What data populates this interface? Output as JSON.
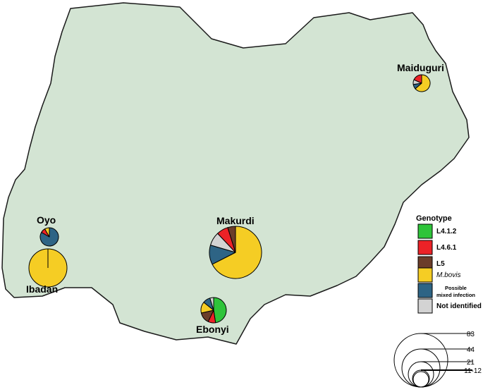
{
  "colors": {
    "land": "#d3e4d3",
    "border": "#1a1a1a",
    "L4.1.2": "#2ec43a",
    "L4.6.1": "#ec2227",
    "L5": "#6b3d2a",
    "M.bovis": "#f5cd24",
    "Possible mixed infection": "#2e6485",
    "Not identified": "#d3d3d3"
  },
  "legend": {
    "title": "Genotype",
    "items": [
      {
        "key": "L4.1.2",
        "label": "L4.1.2",
        "style": "bold"
      },
      {
        "key": "L4.6.1",
        "label": "L4.6.1",
        "style": "bold"
      },
      {
        "key": "L5",
        "label": "L5",
        "style": "bold"
      },
      {
        "key": "M.bovis",
        "label": "M.bovis",
        "style": "italic"
      },
      {
        "key": "Possible mixed infection",
        "label_line1": "Possible",
        "label_line2": "mixed infection",
        "style": "small"
      },
      {
        "key": "Not identified",
        "label": "Not identified",
        "style": "bold"
      }
    ]
  },
  "size_legend": [
    "83",
    "44",
    "21",
    "11-12"
  ],
  "sites": [
    {
      "name": "Maiduguri",
      "total": 11,
      "slices": [
        {
          "key": "M.bovis",
          "value": 7
        },
        {
          "key": "Possible mixed infection",
          "value": 1
        },
        {
          "key": "Not identified",
          "value": 1
        },
        {
          "key": "L4.6.1",
          "value": 2
        }
      ]
    },
    {
      "name": "Oyo",
      "total": 12,
      "slices": [
        {
          "key": "Possible mixed infection",
          "value": 10
        },
        {
          "key": "L4.6.1",
          "value": 1
        },
        {
          "key": "M.bovis",
          "value": 1
        }
      ]
    },
    {
      "name": "Ibadan",
      "total": 44,
      "slices": [
        {
          "key": "M.bovis",
          "value": 44
        }
      ]
    },
    {
      "name": "Makurdi",
      "total": 83,
      "slices": [
        {
          "key": "M.bovis",
          "value": 56
        },
        {
          "key": "Possible mixed infection",
          "value": 10
        },
        {
          "key": "Not identified",
          "value": 7
        },
        {
          "key": "L4.6.1",
          "value": 6
        },
        {
          "key": "L5",
          "value": 4
        }
      ]
    },
    {
      "name": "Ebonyi",
      "total": 21,
      "slices": [
        {
          "key": "L4.1.2",
          "value": 10
        },
        {
          "key": "L4.6.1",
          "value": 2
        },
        {
          "key": "L5",
          "value": 3
        },
        {
          "key": "M.bovis",
          "value": 3
        },
        {
          "key": "Possible mixed infection",
          "value": 2
        },
        {
          "key": "Not identified",
          "value": 1
        }
      ]
    }
  ]
}
